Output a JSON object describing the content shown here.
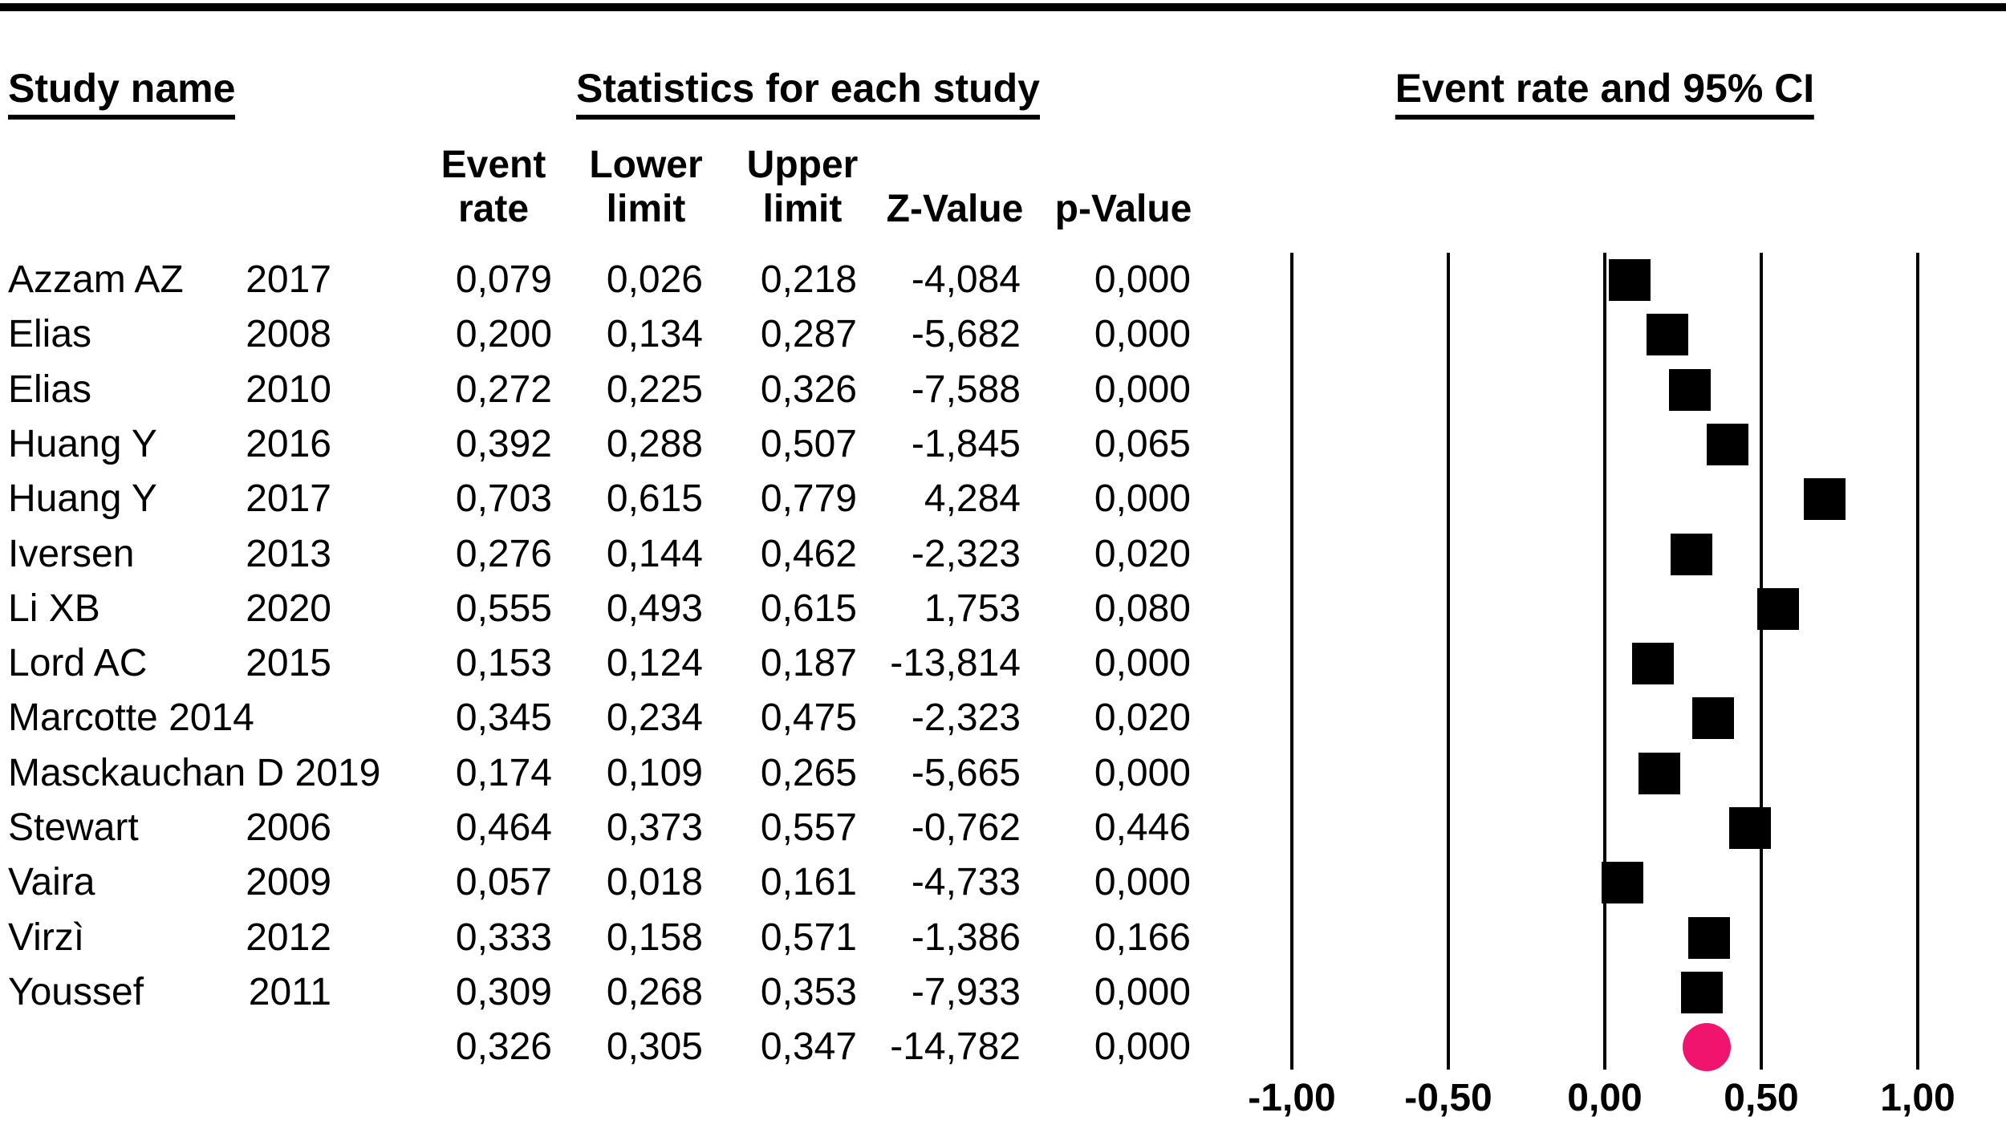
{
  "headers": {
    "study_name": "Study name",
    "statistics": "Statistics for each study",
    "ci_title": "Event rate and 95% CI"
  },
  "column_headers": {
    "event_line1": "Event",
    "event_line2": "rate",
    "lower_line1": "Lower",
    "lower_line2": "limit",
    "upper_line1": "Upper",
    "upper_line2": "limit",
    "z_value": "Z-Value",
    "p_value": "p-Value"
  },
  "chart_data": {
    "type": "scatter",
    "variant": "forest-plot",
    "title": "Event rate and 95% CI",
    "xlabel": "",
    "ylabel": "",
    "x_axis": {
      "range": [
        -1.0,
        1.0
      ],
      "tick_values": [
        -1.0,
        -0.5,
        0.0,
        0.5,
        1.0
      ],
      "tick_labels": [
        "-1,00",
        "-0,50",
        "0,00",
        "0,50",
        "1,00"
      ]
    },
    "grid": "vertical-lines-at-ticks",
    "legend_position": "none",
    "studies": [
      {
        "name": "Azzam AZ",
        "year": "2017",
        "event_rate": "0,079",
        "lower_limit": "0,026",
        "upper_limit": "0,218",
        "z_value": "-4,084",
        "p_value": "0,000",
        "rate": 0.079
      },
      {
        "name": "Elias",
        "year": "2008",
        "event_rate": "0,200",
        "lower_limit": "0,134",
        "upper_limit": "0,287",
        "z_value": "-5,682",
        "p_value": "0,000",
        "rate": 0.2
      },
      {
        "name": "Elias",
        "year": "2010",
        "event_rate": "0,272",
        "lower_limit": "0,225",
        "upper_limit": "0,326",
        "z_value": "-7,588",
        "p_value": "0,000",
        "rate": 0.272
      },
      {
        "name": "Huang Y",
        "year": "2016",
        "event_rate": "0,392",
        "lower_limit": "0,288",
        "upper_limit": "0,507",
        "z_value": "-1,845",
        "p_value": "0,065",
        "rate": 0.392
      },
      {
        "name": "Huang Y",
        "year": "2017",
        "event_rate": "0,703",
        "lower_limit": "0,615",
        "upper_limit": "0,779",
        "z_value": "4,284",
        "p_value": "0,000",
        "rate": 0.703
      },
      {
        "name": "Iversen",
        "year": "2013",
        "event_rate": "0,276",
        "lower_limit": "0,144",
        "upper_limit": "0,462",
        "z_value": "-2,323",
        "p_value": "0,020",
        "rate": 0.276
      },
      {
        "name": "Li XB",
        "year": "2020",
        "event_rate": "0,555",
        "lower_limit": "0,493",
        "upper_limit": "0,615",
        "z_value": "1,753",
        "p_value": "0,080",
        "rate": 0.555
      },
      {
        "name": "Lord AC",
        "year": "2015",
        "event_rate": "0,153",
        "lower_limit": "0,124",
        "upper_limit": "0,187",
        "z_value": "-13,814",
        "p_value": "0,000",
        "rate": 0.153
      },
      {
        "name": "Marcotte 2014",
        "year": "",
        "event_rate": "0,345",
        "lower_limit": "0,234",
        "upper_limit": "0,475",
        "z_value": "-2,323",
        "p_value": "0,020",
        "rate": 0.345
      },
      {
        "name": "Masckauchan D 2019",
        "year": "",
        "event_rate": "0,174",
        "lower_limit": "0,109",
        "upper_limit": "0,265",
        "z_value": "-5,665",
        "p_value": "0,000",
        "rate": 0.174
      },
      {
        "name": "Stewart",
        "year": "2006",
        "event_rate": "0,464",
        "lower_limit": "0,373",
        "upper_limit": "0,557",
        "z_value": "-0,762",
        "p_value": "0,446",
        "rate": 0.464
      },
      {
        "name": "Vaira",
        "year": "2009",
        "event_rate": "0,057",
        "lower_limit": "0,018",
        "upper_limit": "0,161",
        "z_value": "-4,733",
        "p_value": "0,000",
        "rate": 0.057
      },
      {
        "name": "Virzì",
        "year": "2012",
        "event_rate": "0,333",
        "lower_limit": "0,158",
        "upper_limit": "0,571",
        "z_value": "-1,386",
        "p_value": "0,166",
        "rate": 0.333
      },
      {
        "name": "Youssef",
        "year": "2011",
        "event_rate": "0,309",
        "lower_limit": "0,268",
        "upper_limit": "0,353",
        "z_value": "-7,933",
        "p_value": "0,000",
        "rate": 0.309
      }
    ],
    "summary": {
      "name": "",
      "year": "",
      "event_rate": "0,326",
      "lower_limit": "0,305",
      "upper_limit": "0,347",
      "z_value": "-14,782",
      "p_value": "0,000",
      "rate": 0.326
    },
    "colors": {
      "study_marker": "#000000",
      "summary_marker": "#f0146e",
      "gridline": "#000000"
    }
  }
}
